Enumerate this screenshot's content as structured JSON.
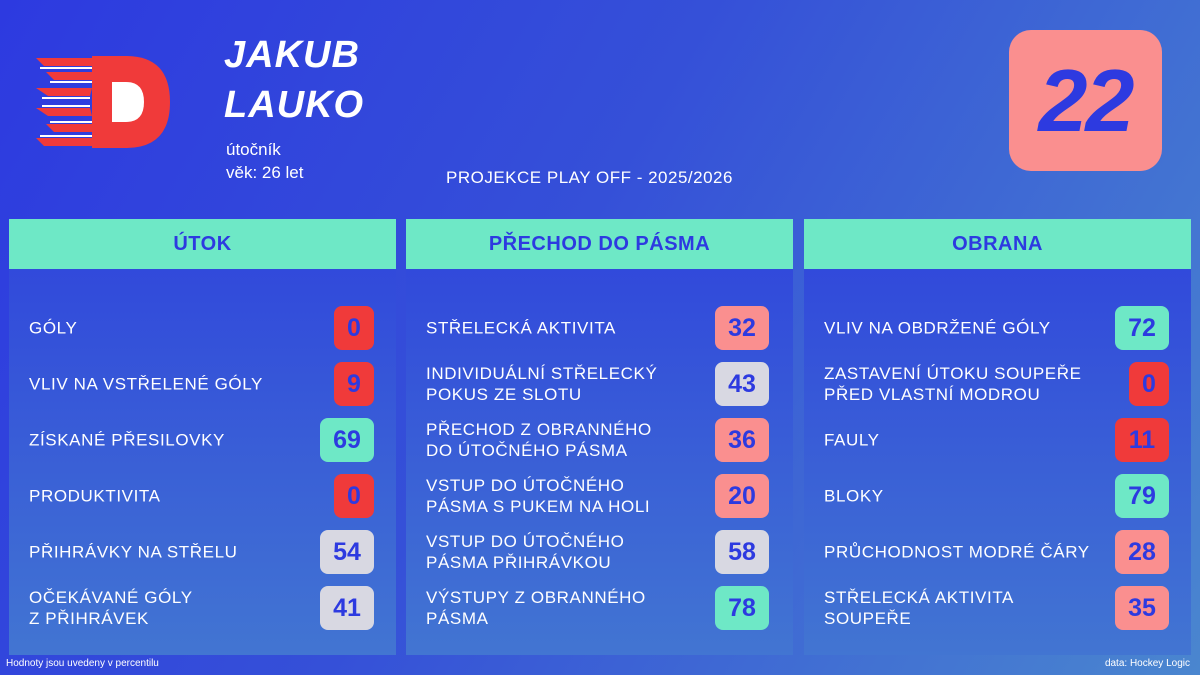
{
  "player": {
    "first_name": "JAKUB",
    "last_name": "LAUKO",
    "position": "útočník",
    "age": "věk: 26 let",
    "number": "22"
  },
  "projection": "PROJEKCE PLAY OFF - 2025/2026",
  "logo_icon": "team-d-logo-icon",
  "colors": {
    "red": "#f03a3a",
    "salmon": "#fa8f8f",
    "green": "#6ee8c6",
    "gray": "#d8d8e2",
    "navy": "#2d3ae0"
  },
  "panels": [
    {
      "title": "ÚTOK",
      "rows": [
        {
          "label": "GÓLY",
          "value": "0",
          "color": "#f03a3a"
        },
        {
          "label": "VLIV NA VSTŘELENÉ GÓLY",
          "value": "9",
          "color": "#f03a3a"
        },
        {
          "label": "ZÍSKANÉ PŘESILOVKY",
          "value": "69",
          "color": "#6ee8c6"
        },
        {
          "label": "PRODUKTIVITA",
          "value": "0",
          "color": "#f03a3a"
        },
        {
          "label": "PŘIHRÁVKY NA STŘELU",
          "value": "54",
          "color": "#d8d8e2"
        },
        {
          "label": "OČEKÁVANÉ GÓLY\nZ PŘIHRÁVEK",
          "value": "41",
          "color": "#d8d8e2"
        }
      ]
    },
    {
      "title": "PŘECHOD DO PÁSMA",
      "rows": [
        {
          "label": "STŘELECKÁ AKTIVITA",
          "value": "32",
          "color": "#fa8f8f"
        },
        {
          "label": "INDIVIDUÁLNÍ STŘELECKÝ\nPOKUS ZE SLOTU",
          "value": "43",
          "color": "#d8d8e2"
        },
        {
          "label": "PŘECHOD Z OBRANNÉHO\nDO ÚTOČNÉHO PÁSMA",
          "value": "36",
          "color": "#fa8f8f"
        },
        {
          "label": "VSTUP DO ÚTOČNÉHO\nPÁSMA S PUKEM NA HOLI",
          "value": "20",
          "color": "#fa8f8f"
        },
        {
          "label": "VSTUP DO ÚTOČNÉHO\nPÁSMA PŘIHRÁVKOU",
          "value": "58",
          "color": "#d8d8e2"
        },
        {
          "label": "VÝSTUPY Z OBRANNÉHO\nPÁSMA",
          "value": "78",
          "color": "#6ee8c6"
        }
      ]
    },
    {
      "title": "OBRANA",
      "rows": [
        {
          "label": "VLIV NA OBDRŽENÉ GÓLY",
          "value": "72",
          "color": "#6ee8c6"
        },
        {
          "label": "ZASTAVENÍ ÚTOKU SOUPEŘE\nPŘED VLASTNÍ MODROU",
          "value": "0",
          "color": "#f03a3a"
        },
        {
          "label": "FAULY",
          "value": "11",
          "color": "#f03a3a"
        },
        {
          "label": "BLOKY",
          "value": "79",
          "color": "#6ee8c6"
        },
        {
          "label": "PRŮCHODNOST MODRÉ ČÁRY",
          "value": "28",
          "color": "#fa8f8f"
        },
        {
          "label": "STŘELECKÁ AKTIVITA\nSOUPEŘE",
          "value": "35",
          "color": "#fa8f8f"
        }
      ]
    }
  ],
  "footer": {
    "note": "Hodnoty jsou uvedeny v percentilu",
    "source": "data: Hockey Logic"
  }
}
